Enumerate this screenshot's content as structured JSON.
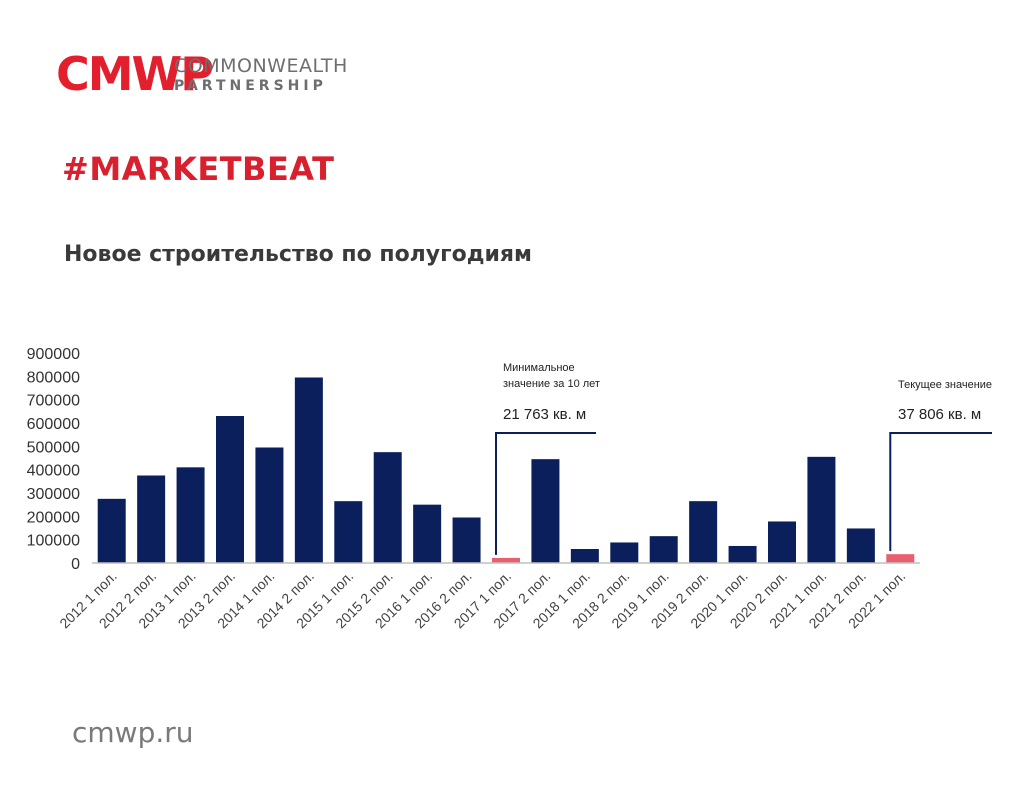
{
  "logo": {
    "mark": "CMWP",
    "line1": "COMMONWEALTH",
    "line2": "PARTNERSHIP"
  },
  "hashtag": "#MARKETBEAT",
  "subtitle": "Новое строительство по полугодиям",
  "website": "cmwp.ru",
  "colors": {
    "bar": "#0a1f5c",
    "highlight": "#e8606f",
    "brand": "#e31e2d",
    "axis": "#bfbfbf"
  },
  "annotations": {
    "min": {
      "label_line1": "Минимальное",
      "label_line2": "значение за 10 лет",
      "value": "21 763 кв. м"
    },
    "current": {
      "label": "Текущее значение",
      "value": "37 806 кв. м"
    }
  },
  "chart_data": {
    "type": "bar",
    "title": "Новое строительство по полугодиям",
    "xlabel": "",
    "ylabel": "",
    "ylim": [
      0,
      900000
    ],
    "yticks": [
      "900000",
      "800000",
      "700000",
      "600000",
      "500000",
      "400000",
      "300000",
      "200000",
      "100000",
      "0"
    ],
    "categories": [
      "2012 1 пол.",
      "2012 2 пол.",
      "2013 1 пол.",
      "2013 2 пол.",
      "2014 1 пол.",
      "2014 2 пол.",
      "2015 1 пол.",
      "2015 2 пол.",
      "2016 1 пол.",
      "2016 2 пол.",
      "2017 1 пол.",
      "2017 2 пол.",
      "2018 1 пол.",
      "2018 2 пол.",
      "2019 1 пол.",
      "2019 2 пол.",
      "2020 1 пол.",
      "2020 2 пол.",
      "2021 1 пол.",
      "2021 2 пол.",
      "2022 1 пол."
    ],
    "values": [
      275000,
      375000,
      410000,
      630000,
      495000,
      795000,
      265000,
      475000,
      250000,
      195000,
      21763,
      445000,
      60000,
      88000,
      115000,
      265000,
      73000,
      178000,
      455000,
      148000,
      37806
    ],
    "highlighted": [
      "2017 1 пол.",
      "2022 1 пол."
    ],
    "grid": false,
    "legend": "none"
  }
}
